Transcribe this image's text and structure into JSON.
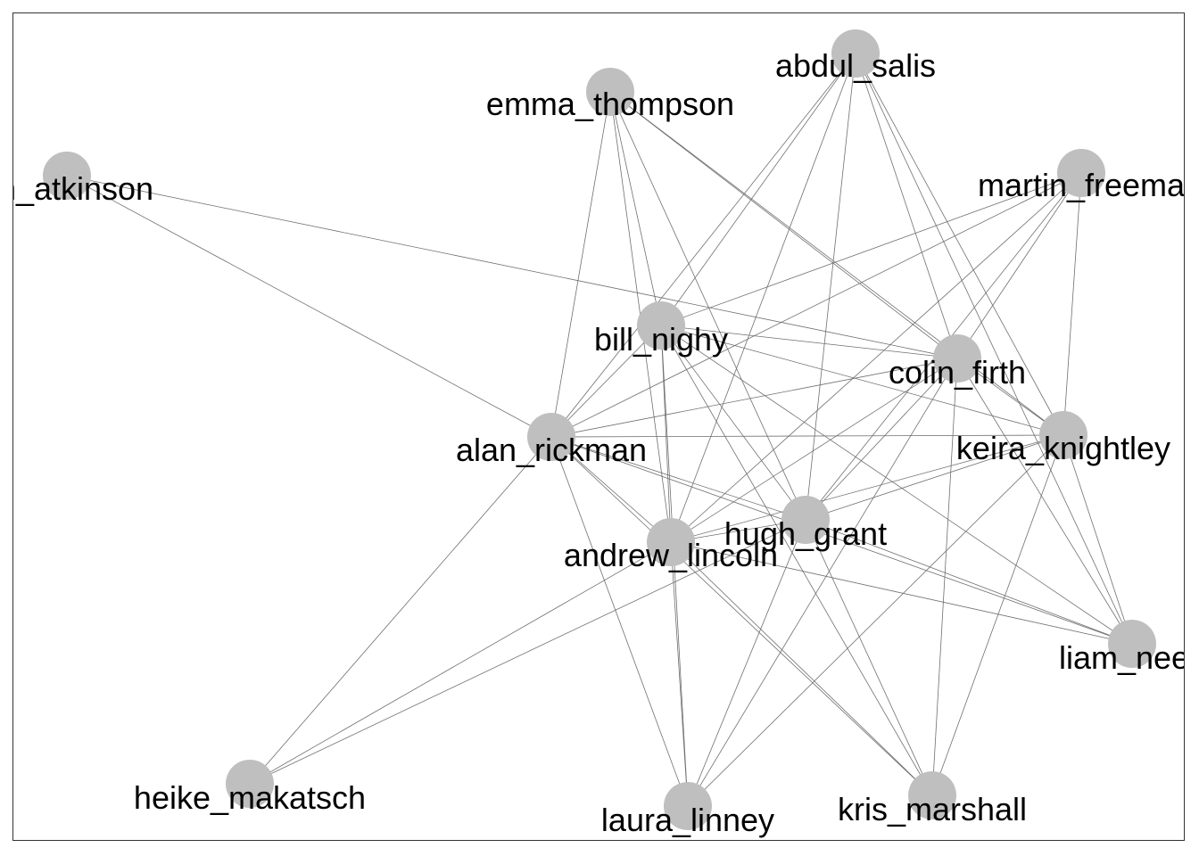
{
  "graph": {
    "node_color": "#bfbfbf",
    "edge_color": "#707070",
    "label_color": "#000000",
    "nodes": [
      {
        "id": "abdul_salis",
        "label": "abdul_salis"
      },
      {
        "id": "emma_thompson",
        "label": "emma_thompson"
      },
      {
        "id": "rowan_atkinson",
        "label": "an_atkinson"
      },
      {
        "id": "martin_freeman",
        "label": "martin_freema"
      },
      {
        "id": "bill_nighy",
        "label": "bill_nighy"
      },
      {
        "id": "colin_firth",
        "label": "colin_firth"
      },
      {
        "id": "alan_rickman",
        "label": "alan_rickman"
      },
      {
        "id": "keira_knightley",
        "label": "keira_knightley"
      },
      {
        "id": "hugh_grant",
        "label": "hugh_grant"
      },
      {
        "id": "andrew_lincoln",
        "label": "andrew_lincoln"
      },
      {
        "id": "liam_neeson",
        "label": "liam_nees"
      },
      {
        "id": "heike_makatsch",
        "label": "heike_makatsch"
      },
      {
        "id": "laura_linney",
        "label": "laura_linney"
      },
      {
        "id": "kris_marshall",
        "label": "kris_marshall"
      }
    ],
    "edges": [
      [
        "rowan_atkinson",
        "colin_firth"
      ],
      [
        "rowan_atkinson",
        "alan_rickman"
      ],
      [
        "emma_thompson",
        "alan_rickman"
      ],
      [
        "emma_thompson",
        "andrew_lincoln"
      ],
      [
        "emma_thompson",
        "bill_nighy"
      ],
      [
        "emma_thompson",
        "colin_firth"
      ],
      [
        "emma_thompson",
        "hugh_grant"
      ],
      [
        "emma_thompson",
        "keira_knightley"
      ],
      [
        "abdul_salis",
        "alan_rickman"
      ],
      [
        "abdul_salis",
        "bill_nighy"
      ],
      [
        "abdul_salis",
        "andrew_lincoln"
      ],
      [
        "abdul_salis",
        "hugh_grant"
      ],
      [
        "abdul_salis",
        "colin_firth"
      ],
      [
        "abdul_salis",
        "keira_knightley"
      ],
      [
        "abdul_salis",
        "liam_neeson"
      ],
      [
        "martin_freeman",
        "bill_nighy"
      ],
      [
        "martin_freeman",
        "alan_rickman"
      ],
      [
        "martin_freeman",
        "colin_firth"
      ],
      [
        "martin_freeman",
        "hugh_grant"
      ],
      [
        "martin_freeman",
        "andrew_lincoln"
      ],
      [
        "martin_freeman",
        "keira_knightley"
      ],
      [
        "bill_nighy",
        "alan_rickman"
      ],
      [
        "bill_nighy",
        "andrew_lincoln"
      ],
      [
        "bill_nighy",
        "hugh_grant"
      ],
      [
        "bill_nighy",
        "colin_firth"
      ],
      [
        "bill_nighy",
        "keira_knightley"
      ],
      [
        "bill_nighy",
        "liam_neeson"
      ],
      [
        "bill_nighy",
        "laura_linney"
      ],
      [
        "bill_nighy",
        "kris_marshall"
      ],
      [
        "colin_firth",
        "alan_rickman"
      ],
      [
        "colin_firth",
        "keira_knightley"
      ],
      [
        "colin_firth",
        "hugh_grant"
      ],
      [
        "colin_firth",
        "andrew_lincoln"
      ],
      [
        "colin_firth",
        "laura_linney"
      ],
      [
        "colin_firth",
        "kris_marshall"
      ],
      [
        "colin_firth",
        "liam_neeson"
      ],
      [
        "alan_rickman",
        "keira_knightley"
      ],
      [
        "alan_rickman",
        "hugh_grant"
      ],
      [
        "alan_rickman",
        "andrew_lincoln"
      ],
      [
        "alan_rickman",
        "liam_neeson"
      ],
      [
        "alan_rickman",
        "heike_makatsch"
      ],
      [
        "alan_rickman",
        "laura_linney"
      ],
      [
        "alan_rickman",
        "kris_marshall"
      ],
      [
        "keira_knightley",
        "hugh_grant"
      ],
      [
        "keira_knightley",
        "andrew_lincoln"
      ],
      [
        "keira_knightley",
        "liam_neeson"
      ],
      [
        "keira_knightley",
        "laura_linney"
      ],
      [
        "keira_knightley",
        "kris_marshall"
      ],
      [
        "hugh_grant",
        "andrew_lincoln"
      ],
      [
        "hugh_grant",
        "liam_neeson"
      ],
      [
        "hugh_grant",
        "heike_makatsch"
      ],
      [
        "hugh_grant",
        "laura_linney"
      ],
      [
        "hugh_grant",
        "kris_marshall"
      ],
      [
        "andrew_lincoln",
        "liam_neeson"
      ],
      [
        "andrew_lincoln",
        "heike_makatsch"
      ],
      [
        "andrew_lincoln",
        "laura_linney"
      ],
      [
        "andrew_lincoln",
        "kris_marshall"
      ]
    ]
  }
}
